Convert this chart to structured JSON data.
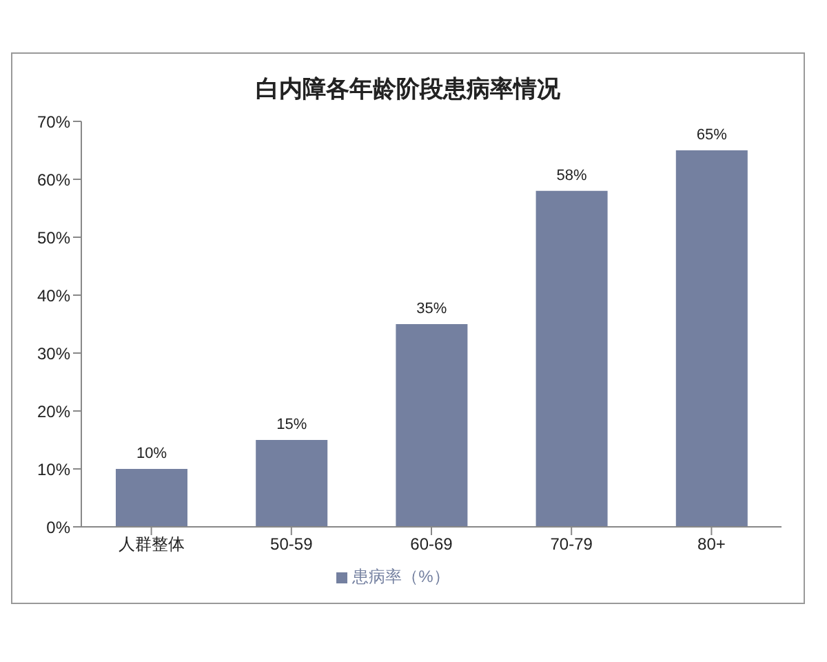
{
  "chart_data": {
    "type": "bar",
    "title": "白内障各年龄阶段患病率情况",
    "categories": [
      "人群整体",
      "50-59",
      "60-69",
      "70-79",
      "80+"
    ],
    "series": [
      {
        "name": "患病率（%）",
        "color": "#7480a0",
        "values": [
          10,
          15,
          35,
          58,
          65
        ],
        "value_labels": [
          "10%",
          "15%",
          "35%",
          "58%",
          "65%"
        ]
      }
    ],
    "ylim": [
      0,
      70
    ],
    "yticks": [
      {
        "value": 0,
        "label": "0%"
      },
      {
        "value": 10,
        "label": "10%"
      },
      {
        "value": 20,
        "label": "20%"
      },
      {
        "value": 30,
        "label": "30%"
      },
      {
        "value": 40,
        "label": "40%"
      },
      {
        "value": 50,
        "label": "50%"
      },
      {
        "value": 60,
        "label": "60%"
      },
      {
        "value": 70,
        "label": "70%"
      }
    ],
    "grid": false,
    "legend": "bottom"
  }
}
